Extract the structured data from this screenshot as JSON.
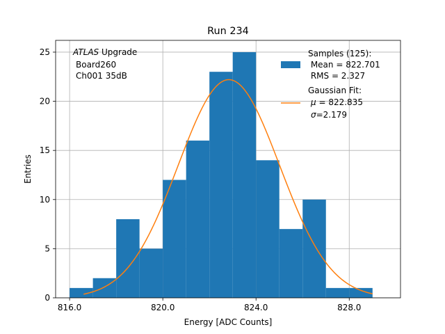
{
  "chart_data": {
    "type": "bar",
    "title": "Run 234",
    "xlabel": "Energy [ADC Counts]",
    "ylabel": "Entries",
    "xlim": [
      815.4,
      830.2
    ],
    "ylim": [
      0,
      26.2
    ],
    "grid": true,
    "x_ticks": [
      816.0,
      820.0,
      824.0,
      828.0
    ],
    "x_tick_labels": [
      "816.0",
      "820.0",
      "824.0",
      "828.0"
    ],
    "y_ticks": [
      0,
      5,
      10,
      15,
      20,
      25
    ],
    "y_tick_labels": [
      "0",
      "5",
      "10",
      "15",
      "20",
      "25"
    ],
    "bin_edges": [
      816,
      817,
      818,
      819,
      820,
      821,
      822,
      823,
      824,
      825,
      826,
      827,
      828,
      829
    ],
    "values": [
      1,
      2,
      8,
      5,
      12,
      16,
      23,
      25,
      14,
      7,
      10,
      1,
      1
    ],
    "fit": {
      "mu": 822.835,
      "sigma": 2.179,
      "amplitude": 22.2,
      "x_range": [
        816.6,
        829.0
      ]
    },
    "annotation_lines": [
      "ATLAS Upgrade",
      "Board260",
      "Ch001 35dB"
    ],
    "annotation_italic_part": "ATLAS",
    "annotation_rest_part": " Upgrade",
    "legend_position": "top-right",
    "legend": {
      "hist_lines": [
        "Samples (125):",
        " Mean = 822.701",
        " RMS = 2.327"
      ],
      "fit_lines": [
        "Gaussian Fit:",
        "822.835",
        "2.179"
      ],
      "mu_symbol": "μ",
      "mu_rest": " = ",
      "sigma_symbol": "σ",
      "sigma_rest": "="
    },
    "colors": {
      "hist": "#1f77b4",
      "fit": "#ff7f0e",
      "grid": "#b0b0b0"
    }
  }
}
